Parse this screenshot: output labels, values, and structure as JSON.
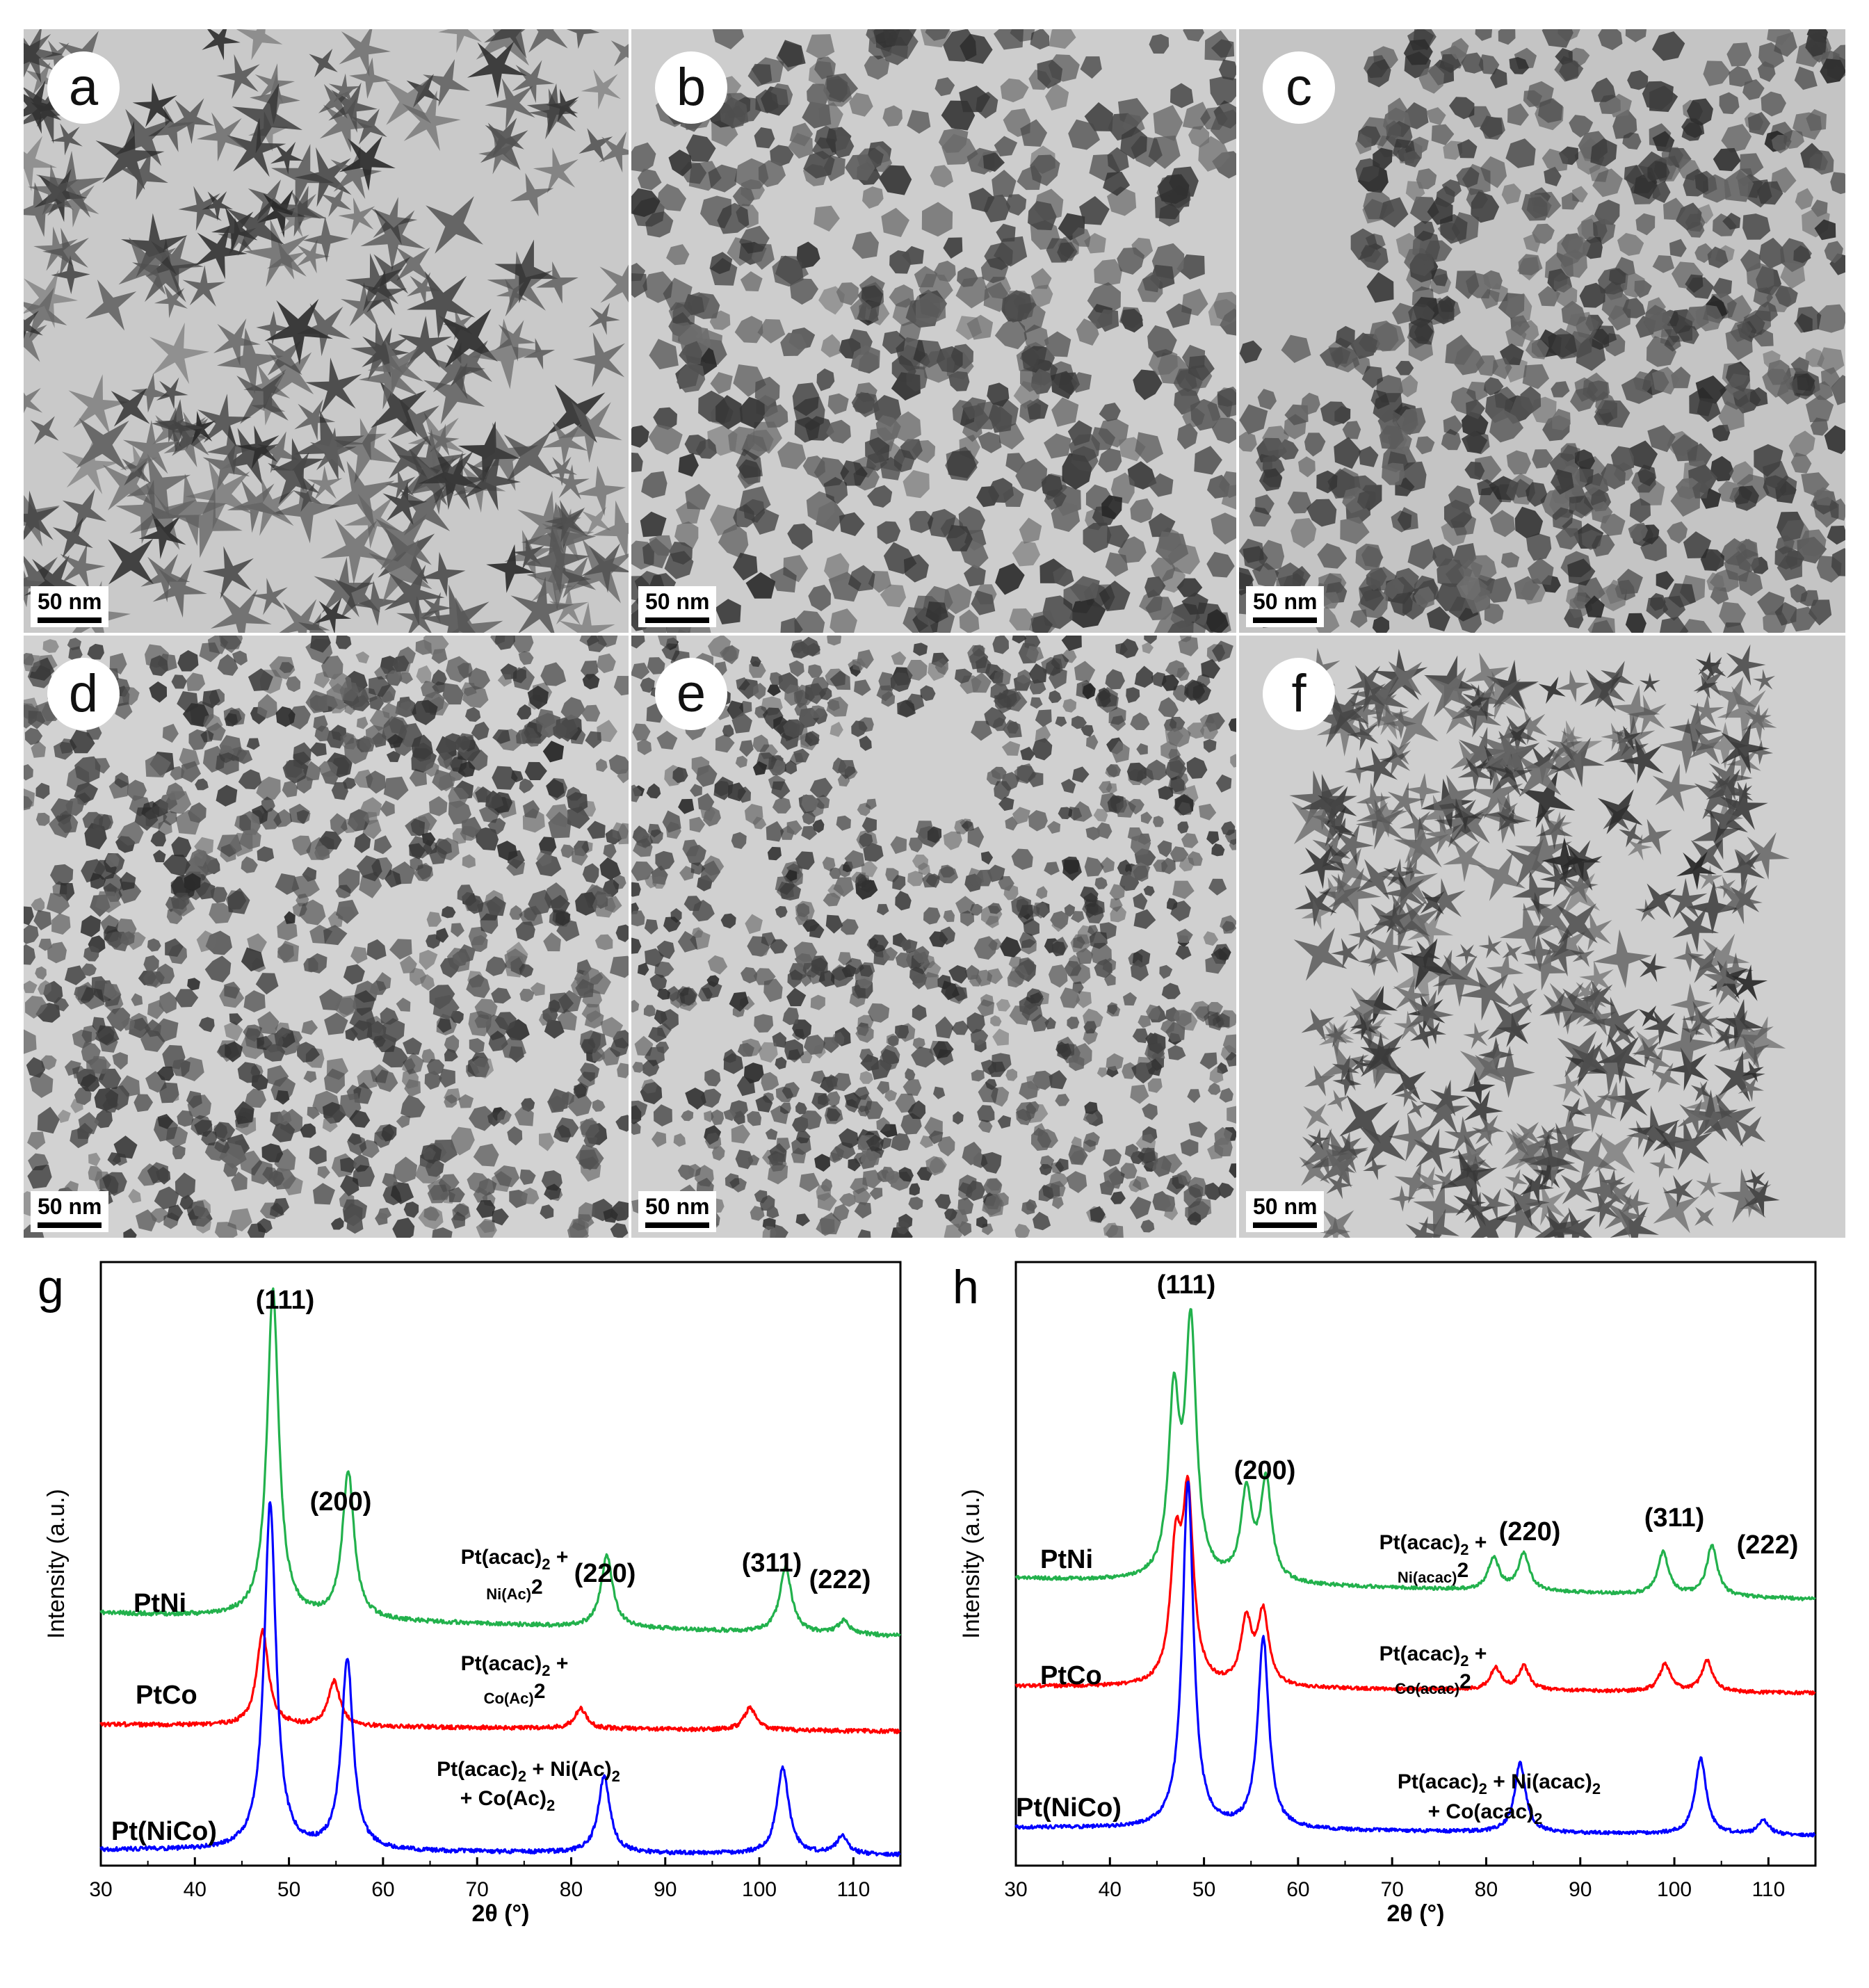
{
  "panels": [
    {
      "letter": "a",
      "scale": "50 nm"
    },
    {
      "letter": "b",
      "scale": "50 nm"
    },
    {
      "letter": "c",
      "scale": "50 nm"
    },
    {
      "letter": "d",
      "scale": "50 nm"
    },
    {
      "letter": "e",
      "scale": "50 nm"
    },
    {
      "letter": "f",
      "scale": "50 nm"
    }
  ],
  "chart_data": [
    {
      "type": "line",
      "panel": "g",
      "xlabel": "2θ (°)",
      "ylabel": "Intensity (a.u.)",
      "xlim": [
        30,
        115
      ],
      "xticks": [
        30,
        40,
        50,
        60,
        70,
        80,
        90,
        100,
        110
      ],
      "peak_labels": [
        {
          "text": "(111)",
          "x": 48.3
        },
        {
          "text": "(200)",
          "x": 56.0
        },
        {
          "text": "(220)",
          "x": 84.0
        },
        {
          "text": "(311)",
          "x": 101.5
        },
        {
          "text": "(222)",
          "x": 110.0
        }
      ],
      "series": [
        {
          "name": "PtNi",
          "color": "#22b14c",
          "annotation": [
            "Pt(acac)",
            "2",
            " + ",
            "Ni(Ac)",
            "2"
          ],
          "peaks": [
            [
              48.3,
              1.0
            ],
            [
              56.3,
              0.45
            ],
            [
              83.8,
              0.22
            ],
            [
              102.8,
              0.2
            ],
            [
              109.0,
              0.04
            ]
          ]
        },
        {
          "name": "PtCo",
          "color": "#ff0000",
          "annotation": [
            "Pt(acac)",
            "2",
            " + ",
            "Co(Ac)",
            "2"
          ],
          "peaks": [
            [
              47.2,
              0.85
            ],
            [
              54.8,
              0.4
            ],
            [
              81.0,
              0.18
            ],
            [
              99.0,
              0.2
            ]
          ]
        },
        {
          "name": "Pt(NiCo)",
          "color": "#0000ff",
          "annotation": [
            "Pt(acac)",
            "2",
            " + Ni(Ac)",
            "2",
            " + Co(Ac)",
            "2"
          ],
          "peaks": [
            [
              48.0,
              1.0
            ],
            [
              56.2,
              0.55
            ],
            [
              83.5,
              0.22
            ],
            [
              102.5,
              0.25
            ],
            [
              108.8,
              0.05
            ]
          ]
        }
      ]
    },
    {
      "type": "line",
      "panel": "h",
      "xlabel": "2θ (°)",
      "ylabel": "Intensity (a.u.)",
      "xlim": [
        30,
        115
      ],
      "xticks": [
        30,
        40,
        50,
        60,
        70,
        80,
        90,
        100,
        110
      ],
      "peak_labels": [
        {
          "text": "(111)",
          "x": 48.5
        },
        {
          "text": "(200)",
          "x": 55.5
        },
        {
          "text": "(220)",
          "x": 83.0
        },
        {
          "text": "(311)",
          "x": 100.0
        },
        {
          "text": "(222)",
          "x": 109.0
        }
      ],
      "series": [
        {
          "name": "PtNi",
          "color": "#22b14c",
          "annotation": [
            "Pt(acac)",
            "2",
            " + ",
            "Ni(acac)",
            "2"
          ],
          "peaks": [
            [
              46.8,
              0.7
            ],
            [
              48.6,
              1.0
            ],
            [
              54.5,
              0.35
            ],
            [
              56.6,
              0.4
            ],
            [
              80.8,
              0.13
            ],
            [
              84.0,
              0.15
            ],
            [
              98.8,
              0.17
            ],
            [
              104.0,
              0.2
            ]
          ]
        },
        {
          "name": "PtCo",
          "color": "#ff0000",
          "annotation": [
            "Pt(acac)",
            "2",
            " + ",
            "Co(acac)",
            "2"
          ],
          "peaks": [
            [
              47.0,
              0.7
            ],
            [
              48.3,
              1.0
            ],
            [
              54.5,
              0.35
            ],
            [
              56.3,
              0.4
            ],
            [
              81.0,
              0.12
            ],
            [
              84.0,
              0.13
            ],
            [
              99.0,
              0.15
            ],
            [
              103.5,
              0.17
            ]
          ]
        },
        {
          "name": "Pt(NiCo)",
          "color": "#0000ff",
          "annotation": [
            "Pt(acac)",
            "2",
            " + Ni(acac)",
            "2",
            "+ Co(acac)",
            "2"
          ],
          "peaks": [
            [
              48.3,
              1.0
            ],
            [
              56.3,
              0.55
            ],
            [
              83.6,
              0.2
            ],
            [
              102.8,
              0.22
            ],
            [
              109.5,
              0.04
            ]
          ]
        }
      ]
    }
  ]
}
